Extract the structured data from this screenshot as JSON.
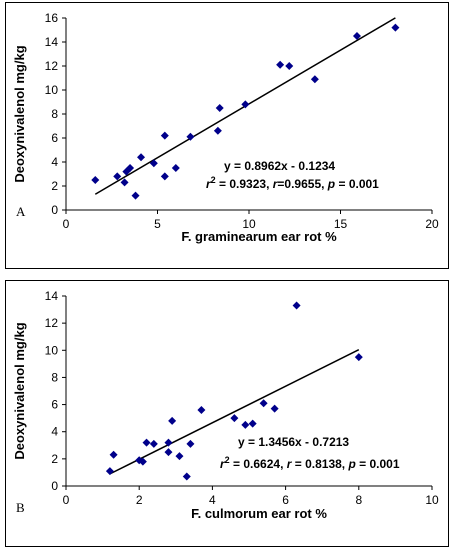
{
  "chart_data": [
    {
      "type": "scatter",
      "panel_label": "A",
      "xlabel": "F. graminearum ear rot %",
      "ylabel": "Deoxynivalenol mg/kg",
      "xlim": [
        0,
        20
      ],
      "ylim": [
        0,
        16
      ],
      "xticks": [
        0,
        5,
        10,
        15,
        20
      ],
      "yticks": [
        0,
        2,
        4,
        6,
        8,
        10,
        12,
        14,
        16
      ],
      "grid": false,
      "marker_color": "#00008b",
      "line_color": "#000000",
      "equation": "y = 0.8962x - 0.1234",
      "stats": {
        "r2_sym": "r",
        "r2_sup": "2",
        "r2_val": " = 0.9323, ",
        "r_sym": "r",
        "r_val": "=0.9655, ",
        "p_sym": "p",
        "p_val": " = 0.001"
      },
      "trendline": {
        "slope": 0.8962,
        "intercept": -0.1234,
        "x_range": [
          1.6,
          18
        ]
      },
      "points": [
        {
          "x": 1.6,
          "y": 2.5
        },
        {
          "x": 2.8,
          "y": 2.8
        },
        {
          "x": 3.2,
          "y": 2.3
        },
        {
          "x": 3.3,
          "y": 3.2
        },
        {
          "x": 3.5,
          "y": 3.5
        },
        {
          "x": 3.8,
          "y": 1.2
        },
        {
          "x": 4.1,
          "y": 4.4
        },
        {
          "x": 4.8,
          "y": 3.9
        },
        {
          "x": 5.4,
          "y": 6.2
        },
        {
          "x": 5.4,
          "y": 2.8
        },
        {
          "x": 6.0,
          "y": 3.5
        },
        {
          "x": 6.8,
          "y": 6.1
        },
        {
          "x": 8.3,
          "y": 6.6
        },
        {
          "x": 8.4,
          "y": 8.5
        },
        {
          "x": 9.8,
          "y": 8.8
        },
        {
          "x": 11.7,
          "y": 12.1
        },
        {
          "x": 12.2,
          "y": 12.0
        },
        {
          "x": 13.6,
          "y": 10.9
        },
        {
          "x": 15.9,
          "y": 14.5
        },
        {
          "x": 18.0,
          "y": 15.2
        }
      ]
    },
    {
      "type": "scatter",
      "panel_label": "B",
      "xlabel": "F. culmorum ear rot %",
      "ylabel": "Deoxynivalenol mg/kg",
      "xlim": [
        0,
        10
      ],
      "ylim": [
        0,
        14
      ],
      "xticks": [
        0,
        2,
        4,
        6,
        8,
        10
      ],
      "yticks": [
        0,
        2,
        4,
        6,
        8,
        10,
        12,
        14
      ],
      "grid": false,
      "marker_color": "#00008b",
      "line_color": "#000000",
      "equation": "y = 1.3456x - 0.7213",
      "stats": {
        "r2_sym": "r",
        "r2_sup": "2",
        "r2_val": " = 0.6624, ",
        "r_sym": "r",
        "r_val": " = 0.8138, ",
        "p_sym": "p",
        "p_val": " = 0.001"
      },
      "trendline": {
        "slope": 1.3456,
        "intercept": -0.7213,
        "x_range": [
          1.2,
          8
        ]
      },
      "points": [
        {
          "x": 1.2,
          "y": 1.1
        },
        {
          "x": 1.3,
          "y": 2.3
        },
        {
          "x": 2.0,
          "y": 1.9
        },
        {
          "x": 2.1,
          "y": 1.8
        },
        {
          "x": 2.2,
          "y": 3.2
        },
        {
          "x": 2.4,
          "y": 3.1
        },
        {
          "x": 2.8,
          "y": 2.5
        },
        {
          "x": 2.8,
          "y": 3.2
        },
        {
          "x": 2.9,
          "y": 4.8
        },
        {
          "x": 3.1,
          "y": 2.2
        },
        {
          "x": 3.3,
          "y": 0.7
        },
        {
          "x": 3.4,
          "y": 3.1
        },
        {
          "x": 3.7,
          "y": 5.6
        },
        {
          "x": 4.6,
          "y": 5.0
        },
        {
          "x": 4.9,
          "y": 4.5
        },
        {
          "x": 5.1,
          "y": 4.6
        },
        {
          "x": 5.4,
          "y": 6.1
        },
        {
          "x": 5.7,
          "y": 5.7
        },
        {
          "x": 6.3,
          "y": 13.3
        },
        {
          "x": 8.0,
          "y": 9.5
        }
      ]
    }
  ]
}
